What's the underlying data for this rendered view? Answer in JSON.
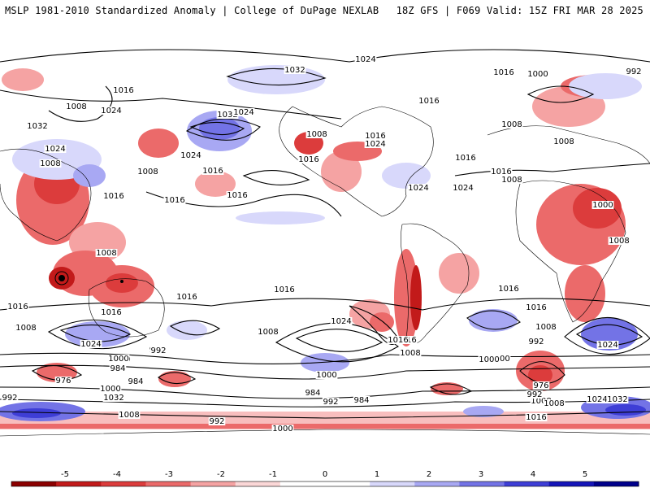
{
  "header": {
    "left": "MSLP 1981-2010 Standardized Anomaly | College of DuPage NEXLAB",
    "right": "18Z GFS | F069 Valid: 15Z FRI MAR 28 2025"
  },
  "colorbar": {
    "ticks": [
      "-5",
      "-4",
      "-3",
      "-2",
      "-1",
      "0",
      "1",
      "2",
      "3",
      "4",
      "5"
    ],
    "colors": [
      "#8b0000",
      "#c21a1a",
      "#dc3c3c",
      "#eb6a6a",
      "#f5a3a3",
      "#fbd7d7",
      "#ffffff",
      "#ffffff",
      "#d8d8fb",
      "#a8a8f3",
      "#7373e6",
      "#3e3ed6",
      "#1515b8",
      "#00008b"
    ]
  },
  "map": {
    "isobar_labels": [
      "1024",
      "1032",
      "1016",
      "1008",
      "1024",
      "1032",
      "1024",
      "1008",
      "1016",
      "1016",
      "1024",
      "1008",
      "1024",
      "1016",
      "1016",
      "1024",
      "1000",
      "992",
      "1016",
      "1008",
      "1008",
      "1016",
      "1032",
      "1024",
      "1016",
      "1008",
      "1016",
      "1016",
      "1024",
      "1008",
      "1000",
      "1016",
      "1008",
      "1016",
      "1016",
      "1008",
      "1016",
      "1024",
      "1016",
      "1008",
      "1016",
      "1008",
      "1024",
      "1000",
      "1016",
      "1008",
      "992",
      "1000",
      "1016",
      "1024",
      "1008",
      "1016",
      "1008",
      "1000",
      "1000",
      "992",
      "984",
      "976",
      "984",
      "992",
      "1000",
      "1032",
      "1008",
      "992",
      "1008",
      "984",
      "992",
      "984",
      "1000",
      "992",
      "1024",
      "1032",
      "1008",
      "1016",
      "976",
      "992",
      "1000"
    ],
    "colors": {
      "negative_anomaly": "#e8554f",
      "strong_negative": "#b01717",
      "positive_anomaly": "#8080ec",
      "strong_positive": "#2222c8",
      "land_outline": "#000000"
    }
  }
}
